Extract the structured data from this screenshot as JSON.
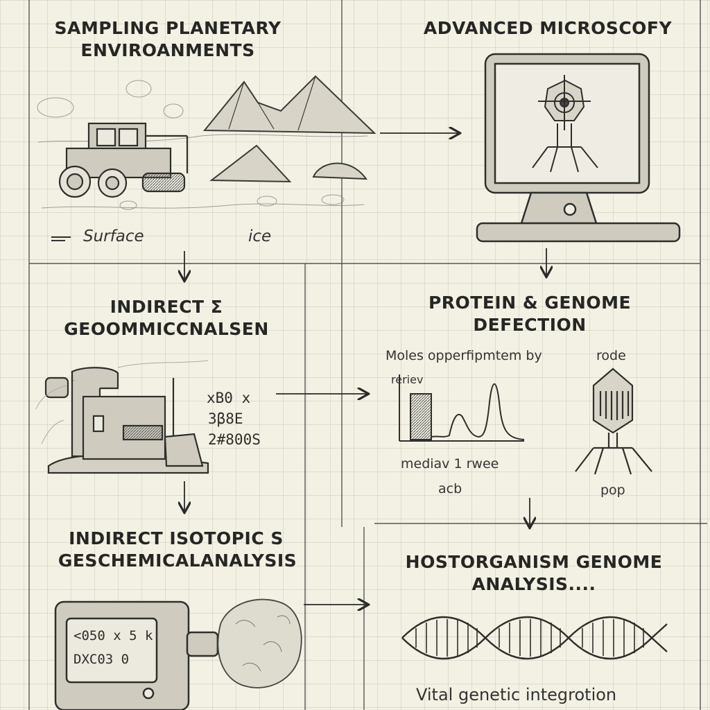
{
  "panels": {
    "sampling": {
      "title_line1": "SAMPLING PLANETARY",
      "title_line2": "ENVIROANMENTS",
      "label_surface": "Surface",
      "label_ice": "ice",
      "icons": [
        "rover-icon",
        "mountains-icon",
        "rocks-icon"
      ]
    },
    "microscopy": {
      "title": "ADVANCED MICROSCOFY",
      "icons": [
        "monitor-icon",
        "microbe-icon"
      ]
    },
    "geochem": {
      "title_line1": "INDIRECT Σ",
      "title_line2": "GEOOMMICCNALSEN",
      "readout": [
        "xB0 x",
        "3β8E",
        "2#800S"
      ],
      "icons": [
        "analyzer-machine-icon"
      ]
    },
    "protein": {
      "title_line1": "PROTEIN & GENOME",
      "title_line2": "DEFECTION",
      "chart_caption": "Moles opperfipmtem by",
      "chart_tag": "reriev",
      "chart_xlabel": "mediav 1 rwee",
      "chart_footer": "acb",
      "phage_top_label": "rode",
      "phage_bottom_label": "pop",
      "icons": [
        "spectrum-chart-icon",
        "phage-icon"
      ]
    },
    "isotopic": {
      "title_line1": "INDIRECT ISOTOPIC S",
      "title_line2": "GESCHEMICALANALYSIS",
      "screen_line1": "<050 x 5 k",
      "screen_line2": "DXC03 0",
      "icons": [
        "isotope-device-icon",
        "rock-sample-icon"
      ]
    },
    "host": {
      "title_line1": "HOSTORGANISM GENOME",
      "title_line2": "ANALYSIS....",
      "caption": "Vital genetic integrotion",
      "icons": [
        "dna-helix-icon"
      ]
    }
  },
  "colors": {
    "paper": "#f3f1e3",
    "ink": "#2a2a28",
    "grid": "#a09f94",
    "device_fill": "#cfcbbf"
  }
}
